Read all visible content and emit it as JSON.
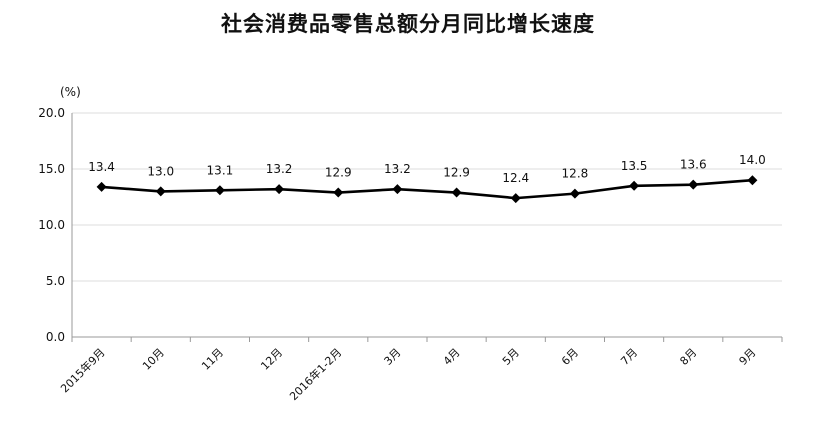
{
  "chart_data": {
    "type": "line",
    "title": "社会消费品零售总额分月同比增长速度",
    "unit_label": "(%)",
    "xlabel": "",
    "ylabel": "",
    "ylim": [
      0,
      20
    ],
    "y_ticks": [
      "0.0",
      "5.0",
      "10.0",
      "15.0",
      "20.0"
    ],
    "grid": "y-major",
    "legend": "none",
    "categories": [
      "2015年9月",
      "10月",
      "11月",
      "12月",
      "2016年1-2月",
      "3月",
      "4月",
      "5月",
      "6月",
      "7月",
      "8月",
      "9月"
    ],
    "series": [
      {
        "values": [
          13.4,
          13.0,
          13.1,
          13.2,
          12.9,
          13.2,
          12.9,
          12.4,
          12.8,
          13.5,
          13.6,
          14.0
        ],
        "labels": [
          "13.4",
          "13.0",
          "13.1",
          "13.2",
          "12.9",
          "13.2",
          "12.9",
          "12.4",
          "12.8",
          "13.5",
          "13.6",
          "14.0"
        ],
        "color": "#000000"
      }
    ]
  },
  "colors": {
    "line": "#000000",
    "grid": "#dcdcdc",
    "axis": "#9a9a9a"
  }
}
